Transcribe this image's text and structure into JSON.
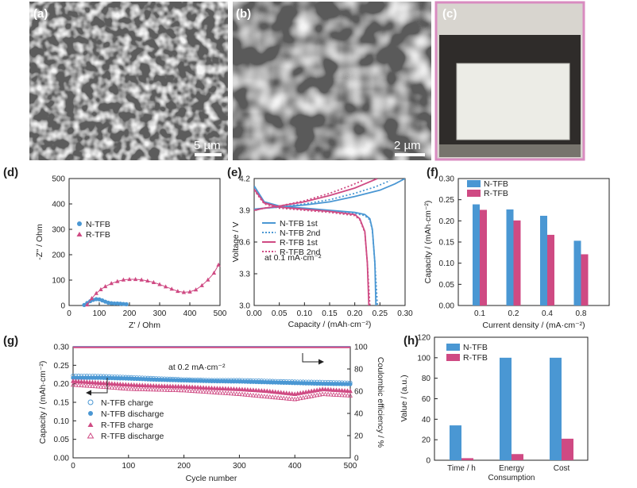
{
  "colors": {
    "n_tfb": "#4a97d3",
    "r_tfb": "#cf4a83",
    "sem_background": "#5a5a5a",
    "photo_border": "#d98bc0"
  },
  "panels": {
    "a": {
      "label": "(a)",
      "scale_bar": "5 µm"
    },
    "b": {
      "label": "(b)",
      "scale_bar": "2 µm"
    },
    "c": {
      "label": "(c)"
    },
    "d": {
      "label": "(d)"
    },
    "e": {
      "label": "(e)"
    },
    "f": {
      "label": "(f)"
    },
    "g": {
      "label": "(g)"
    },
    "h": {
      "label": "(h)"
    }
  },
  "chart_data": [
    {
      "panel": "d",
      "type": "scatter",
      "xlabel": "Z' / Ohm",
      "ylabel": "-Z'' / Ohm",
      "xlim": [
        0,
        500
      ],
      "ylim": [
        0,
        500
      ],
      "xticks": [
        0,
        100,
        200,
        300,
        400,
        500
      ],
      "yticks": [
        0,
        100,
        200,
        300,
        400,
        500
      ],
      "legend_position": "middle-left",
      "series": [
        {
          "name": "N-TFB",
          "marker": "circle",
          "x": [
            50,
            60,
            70,
            80,
            90,
            100,
            110,
            120,
            130,
            140,
            150,
            160,
            170,
            180,
            190
          ],
          "y": [
            2,
            10,
            17,
            22,
            25,
            24,
            20,
            15,
            11,
            9,
            8,
            8,
            7,
            6,
            5
          ]
        },
        {
          "name": "R-TFB",
          "marker": "triangle",
          "x": [
            60,
            75,
            90,
            105,
            120,
            140,
            160,
            180,
            200,
            220,
            240,
            260,
            280,
            300,
            320,
            340,
            360,
            380,
            400,
            420,
            440,
            460,
            480,
            495
          ],
          "y": [
            3,
            28,
            48,
            63,
            75,
            87,
            95,
            101,
            103,
            103,
            101,
            97,
            91,
            83,
            74,
            65,
            56,
            52,
            54,
            62,
            79,
            101,
            128,
            160
          ]
        }
      ]
    },
    {
      "panel": "e",
      "type": "line",
      "xlabel": "Capacity / (mAh·cm⁻²)",
      "ylabel": "Voltage / V",
      "xlim": [
        0,
        0.3
      ],
      "ylim": [
        3.0,
        4.2
      ],
      "xticks": [
        "0.00",
        "0.05",
        "0.10",
        "0.15",
        "0.20",
        "0.25",
        "0.30"
      ],
      "yticks": [
        "3.0",
        "3.3",
        "3.6",
        "3.9",
        "4.2"
      ],
      "annotation": "at 0.1 mA·cm⁻²",
      "legend_position": "middle-left",
      "series": [
        {
          "name": "N-TFB 1st",
          "line": "solid",
          "color": "n",
          "charge_x": [
            0,
            0.02,
            0.05,
            0.1,
            0.15,
            0.2,
            0.25,
            0.28,
            0.3
          ],
          "charge_y": [
            3.91,
            3.92,
            3.93,
            3.95,
            3.98,
            4.03,
            4.09,
            4.15,
            4.2
          ],
          "discharge_x": [
            0,
            0.02,
            0.05,
            0.1,
            0.15,
            0.2,
            0.22,
            0.23,
            0.235,
            0.24,
            0.242
          ],
          "discharge_y": [
            4.13,
            3.98,
            3.94,
            3.92,
            3.9,
            3.88,
            3.86,
            3.82,
            3.72,
            3.4,
            3.0
          ]
        },
        {
          "name": "N-TFB 2nd",
          "line": "dotted",
          "color": "n",
          "charge_x": [
            0,
            0.02,
            0.05,
            0.1,
            0.15,
            0.2,
            0.24,
            0.27
          ],
          "charge_y": [
            3.9,
            3.92,
            3.93,
            3.96,
            4.0,
            4.06,
            4.12,
            4.18
          ],
          "discharge_x": [
            0,
            0.02,
            0.05,
            0.1,
            0.15,
            0.2,
            0.22,
            0.23,
            0.235,
            0.24,
            0.245
          ],
          "discharge_y": [
            4.12,
            3.97,
            3.93,
            3.91,
            3.89,
            3.87,
            3.85,
            3.81,
            3.71,
            3.4,
            3.0
          ]
        },
        {
          "name": "R-TFB 1st",
          "line": "solid",
          "color": "r",
          "charge_x": [
            0,
            0.02,
            0.05,
            0.1,
            0.15,
            0.2,
            0.22,
            0.245
          ],
          "charge_y": [
            3.9,
            3.92,
            3.94,
            3.98,
            4.04,
            4.11,
            4.15,
            4.2
          ],
          "discharge_x": [
            0,
            0.02,
            0.05,
            0.1,
            0.15,
            0.2,
            0.21,
            0.22,
            0.225,
            0.228
          ],
          "discharge_y": [
            4.1,
            3.97,
            3.93,
            3.91,
            3.89,
            3.86,
            3.82,
            3.7,
            3.4,
            3.0
          ]
        },
        {
          "name": "R-TFB 2nd",
          "line": "dotted",
          "color": "r",
          "charge_x": [
            0,
            0.02,
            0.05,
            0.1,
            0.15,
            0.19,
            0.215
          ],
          "charge_y": [
            3.9,
            3.92,
            3.94,
            3.99,
            4.06,
            4.13,
            4.18
          ],
          "discharge_x": [
            0,
            0.02,
            0.05,
            0.1,
            0.15,
            0.2,
            0.21,
            0.22,
            0.225,
            0.23
          ],
          "discharge_y": [
            4.09,
            3.96,
            3.92,
            3.9,
            3.88,
            3.85,
            3.81,
            3.69,
            3.4,
            3.0
          ]
        }
      ]
    },
    {
      "panel": "f",
      "type": "bar",
      "xlabel": "Current density / (mA·cm⁻²)",
      "ylabel": "Capacity / (mAh·cm⁻²)",
      "categories": [
        "0.1",
        "0.2",
        "0.4",
        "0.8"
      ],
      "ylim": [
        0,
        0.3
      ],
      "yticks": [
        "0.00",
        "0.05",
        "0.10",
        "0.15",
        "0.20",
        "0.25",
        "0.30"
      ],
      "legend_position": "top-left",
      "series": [
        {
          "name": "N-TFB",
          "values": [
            0.239,
            0.227,
            0.212,
            0.153
          ]
        },
        {
          "name": "R-TFB",
          "values": [
            0.226,
            0.201,
            0.167,
            0.121
          ]
        }
      ]
    },
    {
      "panel": "g",
      "type": "scatter",
      "xlabel": "Cycle number",
      "ylabel": "Capacity / (mAh·cm⁻²)",
      "y2label": "Coulombic efficiency / %",
      "xlim": [
        0,
        500
      ],
      "ylim": [
        0,
        0.3
      ],
      "y2lim": [
        0,
        100
      ],
      "xticks": [
        0,
        100,
        200,
        300,
        400,
        500
      ],
      "yticks": [
        "0.00",
        "0.05",
        "0.10",
        "0.15",
        "0.20",
        "0.25",
        "0.30"
      ],
      "y2ticks": [
        0,
        20,
        40,
        60,
        80,
        100
      ],
      "annotation": "at 0.2 mA·cm⁻²",
      "legend_position": "bottom-left",
      "series": [
        {
          "name": "N-TFB charge",
          "marker": "open-circle",
          "axis": "left",
          "x": [
            0,
            50,
            100,
            150,
            200,
            250,
            300,
            350,
            400,
            450,
            500
          ],
          "y": [
            0.222,
            0.221,
            0.218,
            0.215,
            0.212,
            0.21,
            0.21,
            0.208,
            0.206,
            0.205,
            0.203
          ]
        },
        {
          "name": "N-TFB discharge",
          "marker": "filled-circle",
          "axis": "left",
          "x": [
            0,
            50,
            100,
            150,
            200,
            250,
            300,
            350,
            400,
            450,
            500
          ],
          "y": [
            0.216,
            0.216,
            0.214,
            0.211,
            0.209,
            0.207,
            0.206,
            0.204,
            0.202,
            0.2,
            0.199
          ]
        },
        {
          "name": "R-TFB charge",
          "marker": "filled-triangle",
          "axis": "left",
          "x": [
            0,
            50,
            100,
            150,
            200,
            250,
            300,
            350,
            400,
            450,
            500
          ],
          "y": [
            0.207,
            0.202,
            0.197,
            0.194,
            0.192,
            0.188,
            0.185,
            0.18,
            0.172,
            0.185,
            0.18
          ]
        },
        {
          "name": "R-TFB discharge",
          "marker": "open-triangle",
          "axis": "left",
          "x": [
            0,
            50,
            100,
            150,
            200,
            250,
            300,
            350,
            400,
            450,
            500
          ],
          "y": [
            0.197,
            0.192,
            0.186,
            0.184,
            0.182,
            0.177,
            0.172,
            0.165,
            0.158,
            0.172,
            0.168
          ]
        },
        {
          "name": "N-TFB Coulombic efficiency",
          "axis": "right",
          "x": [
            0,
            100,
            200,
            300,
            400,
            500
          ],
          "y": [
            99.8,
            99.8,
            99.8,
            99.8,
            99.8,
            99.8
          ]
        },
        {
          "name": "R-TFB Coulombic efficiency",
          "axis": "right",
          "x": [
            0,
            100,
            200,
            300,
            400,
            500
          ],
          "y": [
            99.5,
            99.5,
            99.5,
            99.5,
            99.5,
            99.5
          ]
        }
      ]
    },
    {
      "panel": "h",
      "type": "bar",
      "ylabel": "Value / (a.u.)",
      "categories": [
        "Time / h",
        "Energy Consumption",
        "Cost"
      ],
      "ylim": [
        0,
        120
      ],
      "yticks": [
        0,
        20,
        40,
        60,
        80,
        100,
        120
      ],
      "legend_position": "top-left",
      "series": [
        {
          "name": "N-TFB",
          "values": [
            34,
            100,
            100
          ]
        },
        {
          "name": "R-TFB",
          "values": [
            2,
            6,
            21
          ]
        }
      ]
    }
  ]
}
